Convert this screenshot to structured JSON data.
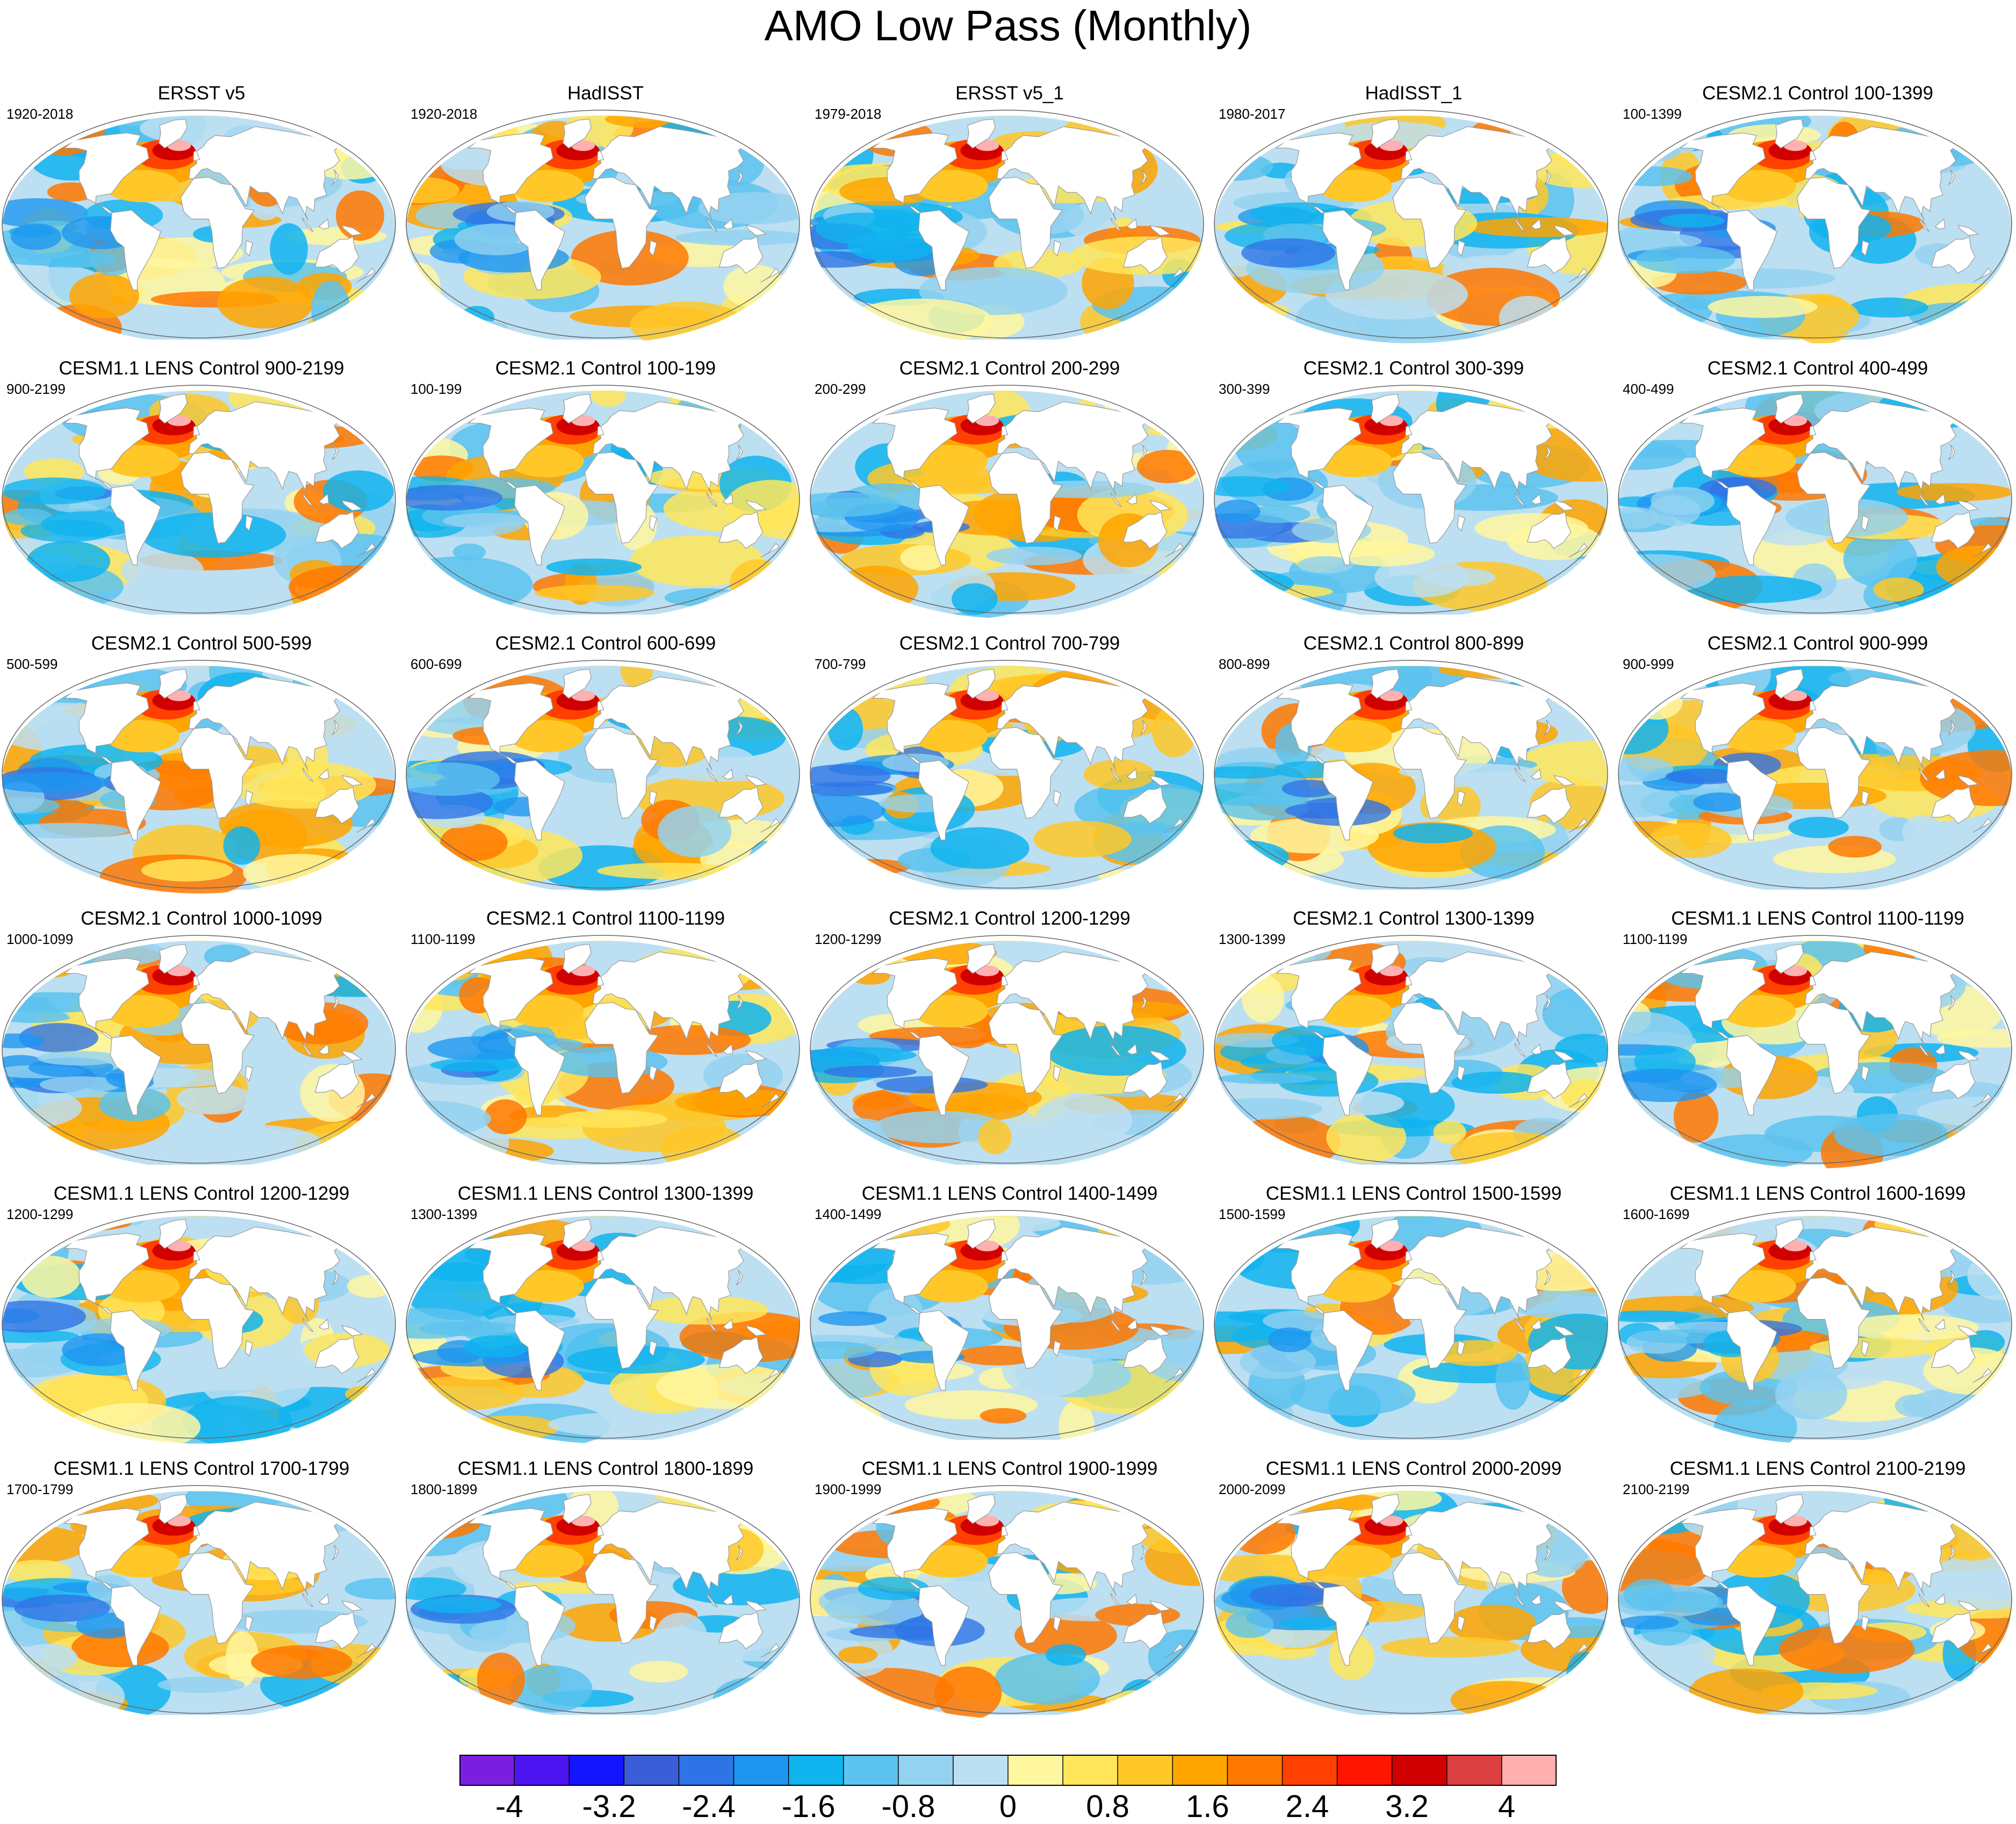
{
  "title": "AMO Low Pass (Monthly)",
  "colors": {
    "land": "#ffffff",
    "coast": "#9a9a9a",
    "border": "#666666",
    "bins": [
      "#7a1fe0",
      "#4d14f2",
      "#1414ff",
      "#3a5ed8",
      "#2f74e6",
      "#1e96f0",
      "#10b4ef",
      "#5cc3ee",
      "#94d2f0",
      "#bcdff2",
      "#fff7a0",
      "#ffe65a",
      "#ffc828",
      "#ffa500",
      "#ff7800",
      "#ff4000",
      "#ff1500",
      "#d10000",
      "#dc4040",
      "#ffb0b0"
    ]
  },
  "maps": [
    {
      "title": "ERSST v5",
      "period": "1920-2018"
    },
    {
      "title": "HadISST",
      "period": "1920-2018"
    },
    {
      "title": "ERSST v5_1",
      "period": "1979-2018"
    },
    {
      "title": "HadISST_1",
      "period": "1980-2017"
    },
    {
      "title": "CESM2.1 Control 100-1399",
      "period": "100-1399"
    },
    {
      "title": "CESM1.1 LENS Control 900-2199",
      "period": "900-2199"
    },
    {
      "title": "CESM2.1 Control 100-199",
      "period": "100-199"
    },
    {
      "title": "CESM2.1 Control 200-299",
      "period": "200-299"
    },
    {
      "title": "CESM2.1 Control 300-399",
      "period": "300-399"
    },
    {
      "title": "CESM2.1 Control 400-499",
      "period": "400-499"
    },
    {
      "title": "CESM2.1 Control 500-599",
      "period": "500-599"
    },
    {
      "title": "CESM2.1 Control 600-699",
      "period": "600-699"
    },
    {
      "title": "CESM2.1 Control 700-799",
      "period": "700-799"
    },
    {
      "title": "CESM2.1 Control 800-899",
      "period": "800-899"
    },
    {
      "title": "CESM2.1 Control 900-999",
      "period": "900-999"
    },
    {
      "title": "CESM2.1 Control 1000-1099",
      "period": "1000-1099"
    },
    {
      "title": "CESM2.1 Control 1100-1199",
      "period": "1100-1199"
    },
    {
      "title": "CESM2.1 Control 1200-1299",
      "period": "1200-1299"
    },
    {
      "title": "CESM2.1 Control 1300-1399",
      "period": "1300-1399"
    },
    {
      "title": "CESM1.1 LENS Control 1100-1199",
      "period": "1100-1199"
    },
    {
      "title": "CESM1.1 LENS Control 1200-1299",
      "period": "1200-1299"
    },
    {
      "title": "CESM1.1 LENS Control 1300-1399",
      "period": "1300-1399"
    },
    {
      "title": "CESM1.1 LENS Control 1400-1499",
      "period": "1400-1499"
    },
    {
      "title": "CESM1.1 LENS Control 1500-1599",
      "period": "1500-1599"
    },
    {
      "title": "CESM1.1 LENS Control 1600-1699",
      "period": "1600-1699"
    },
    {
      "title": "CESM1.1 LENS Control 1700-1799",
      "period": "1700-1799"
    },
    {
      "title": "CESM1.1 LENS Control 1800-1899",
      "period": "1800-1899"
    },
    {
      "title": "CESM1.1 LENS Control 1900-1999",
      "period": "1900-1999"
    },
    {
      "title": "CESM1.1 LENS Control 2000-2099",
      "period": "2000-2099"
    },
    {
      "title": "CESM1.1 LENS Control 2100-2199",
      "period": "2100-2199"
    }
  ],
  "colorbar": {
    "min": -4.4,
    "max": 4.4,
    "step": 0.4,
    "labels": [
      {
        "text": "-4",
        "value": -4.0
      },
      {
        "text": "-3.2",
        "value": -3.2
      },
      {
        "text": "-2.4",
        "value": -2.4
      },
      {
        "text": "-1.6",
        "value": -1.6
      },
      {
        "text": "-0.8",
        "value": -0.8
      },
      {
        "text": "0",
        "value": 0.0
      },
      {
        "text": "0.8",
        "value": 0.8
      },
      {
        "text": "1.6",
        "value": 1.6
      },
      {
        "text": "2.4",
        "value": 2.4
      },
      {
        "text": "3.2",
        "value": 3.2
      },
      {
        "text": "4",
        "value": 4.0
      }
    ]
  }
}
